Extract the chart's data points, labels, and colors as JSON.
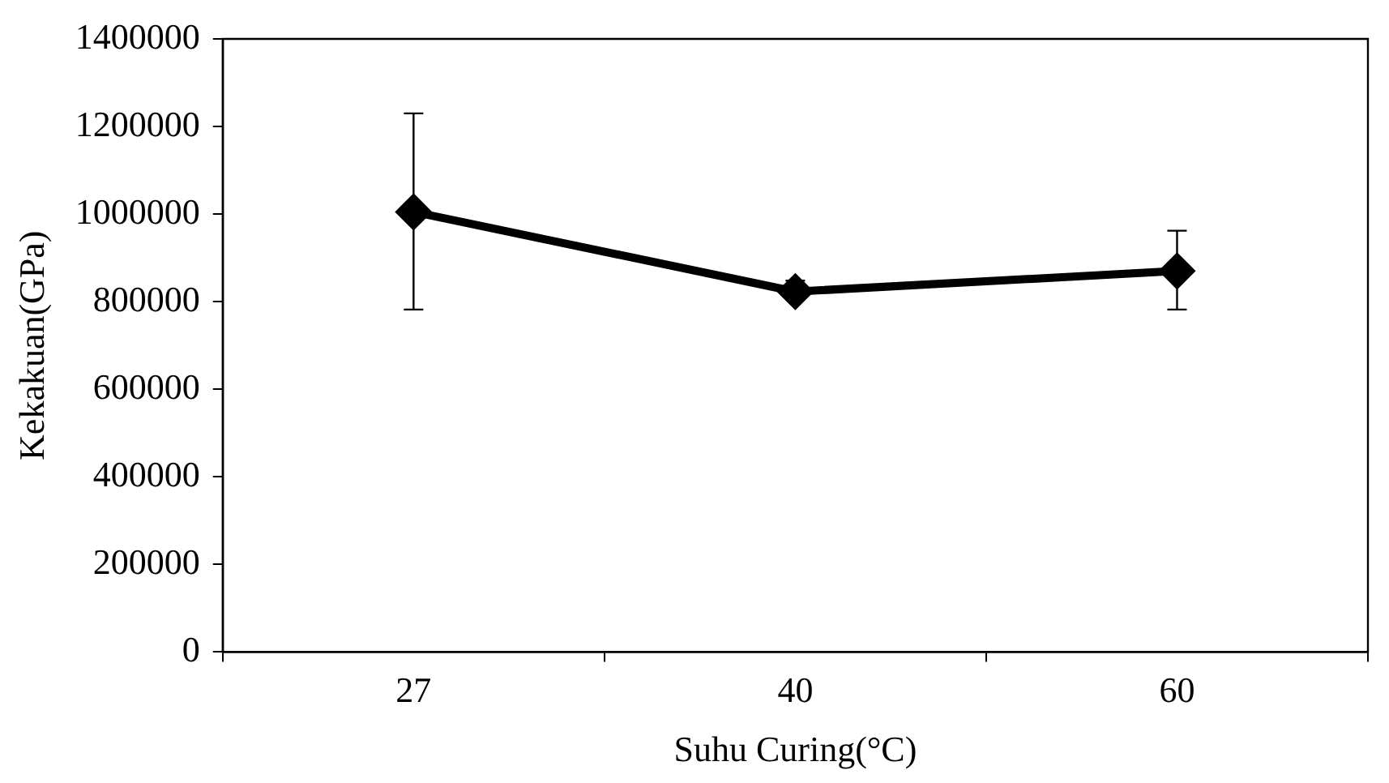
{
  "chart_data": {
    "type": "line",
    "xlabel": "Suhu Curing(°C)",
    "ylabel": "Kekakuan(GPa)",
    "categories": [
      "27",
      "40",
      "60"
    ],
    "series": [
      {
        "color": "#000000",
        "values": [
          1005000,
          823000,
          870000
        ],
        "errors": [
          [
            782000,
            1230000
          ],
          [
            823000,
            848000
          ],
          [
            782000,
            962000
          ]
        ]
      }
    ],
    "ylim": [
      0,
      1400000
    ],
    "yticks": [
      0,
      200000,
      400000,
      600000,
      800000,
      1000000,
      1200000,
      1400000
    ],
    "grid": false,
    "legend": false,
    "marker": "diamond",
    "line_style": "solid"
  }
}
